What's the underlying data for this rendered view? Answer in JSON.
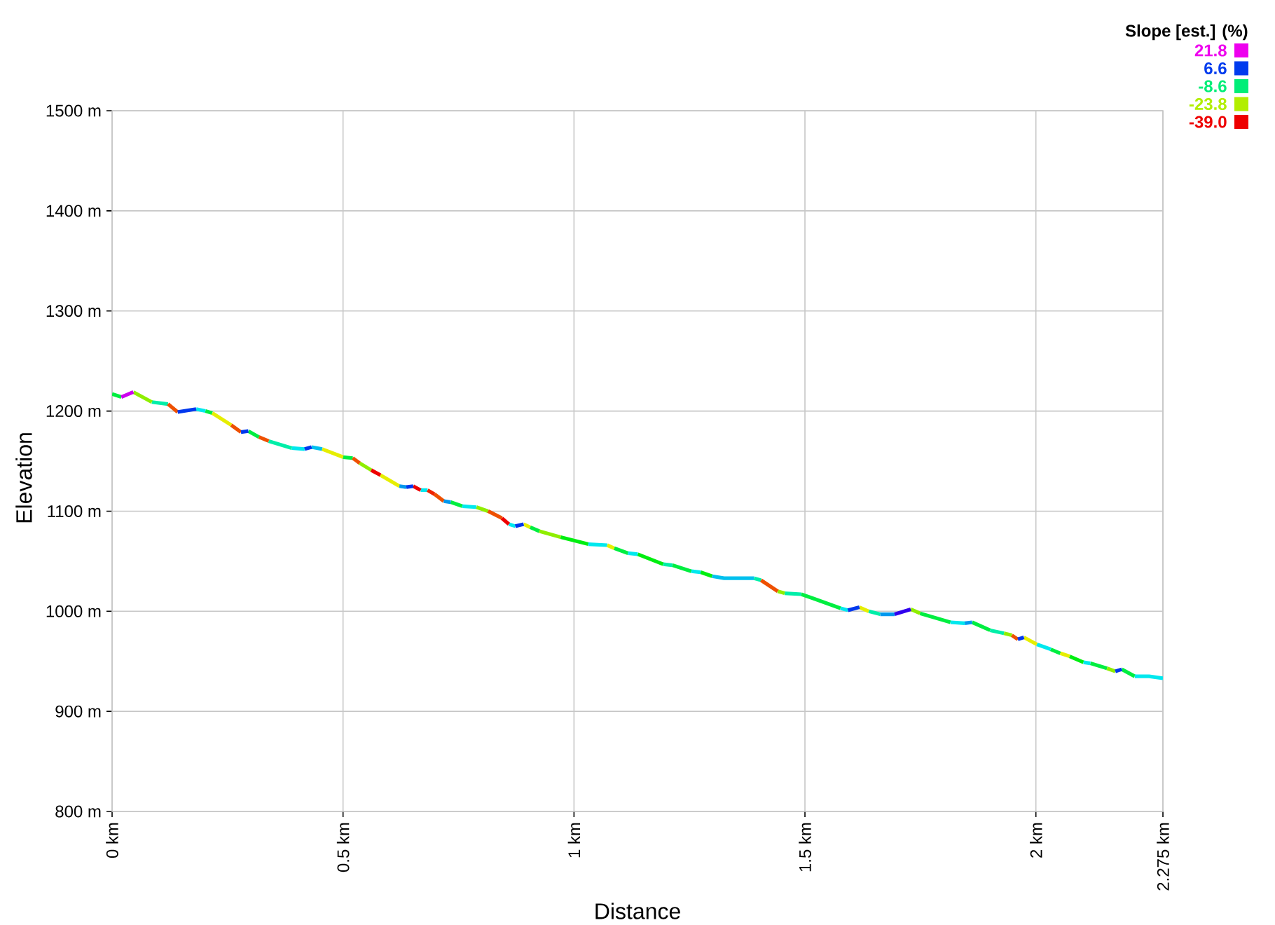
{
  "chart_data": {
    "type": "line",
    "xlabel": "Distance",
    "ylabel": "Elevation",
    "clabel": "Slope [est.] (%)",
    "clim": [
      -39.0,
      21.8
    ],
    "cticks": [
      21.8,
      6.6,
      -8.6,
      -23.8,
      {
        "value": -39.0,
        "label": "-39.0"
      }
    ],
    "xlim": [
      0,
      2.275
    ],
    "ylim": [
      800,
      1500
    ],
    "xticks": [
      {
        "value": 0,
        "label": "0 km"
      },
      {
        "value": 0.5,
        "label": "0.5 km"
      },
      {
        "value": 1,
        "label": "1 km"
      },
      {
        "value": 1.5,
        "label": "1.5 km"
      },
      {
        "value": 2,
        "label": "2 km"
      },
      {
        "value": 2.275,
        "label": "2.275 km"
      }
    ],
    "yticks": [
      {
        "value": 800,
        "label": "800 m"
      },
      {
        "value": 900,
        "label": "900 m"
      },
      {
        "value": 1000,
        "label": "1000 m"
      },
      {
        "value": 1100,
        "label": "1100 m"
      },
      {
        "value": 1200,
        "label": "1200 m"
      },
      {
        "value": 1300,
        "label": "1300 m"
      },
      {
        "value": 1400,
        "label": "1400 m"
      },
      {
        "value": 1500,
        "label": "1500 m"
      }
    ],
    "grid": true,
    "x": [
      0,
      0.02,
      0.046,
      0.086,
      0.121,
      0.142,
      0.182,
      0.202,
      0.217,
      0.258,
      0.279,
      0.295,
      0.318,
      0.339,
      0.389,
      0.417,
      0.432,
      0.455,
      0.5,
      0.521,
      0.536,
      0.561,
      0.581,
      0.622,
      0.637,
      0.652,
      0.668,
      0.683,
      0.698,
      0.718,
      0.733,
      0.758,
      0.789,
      0.814,
      0.844,
      0.859,
      0.873,
      0.891,
      0.905,
      0.925,
      0.971,
      1.031,
      1.072,
      1.087,
      1.117,
      1.138,
      1.193,
      1.213,
      1.254,
      1.274,
      1.299,
      1.325,
      1.39,
      1.405,
      1.441,
      1.456,
      1.492,
      1.517,
      1.577,
      1.593,
      1.618,
      1.638,
      1.663,
      1.694,
      1.729,
      1.749,
      1.815,
      1.846,
      1.862,
      1.901,
      1.931,
      1.948,
      1.961,
      1.974,
      2.002,
      2.032,
      2.053,
      2.073,
      2.103,
      2.118,
      2.154,
      2.172,
      2.186,
      2.214,
      2.245,
      2.275
    ],
    "series": [
      {
        "color": "#00ee40",
        "values": [
          1217,
          1214,
          null,
          null,
          null,
          null,
          null,
          1200,
          1198,
          null,
          null,
          1180,
          1174,
          null,
          null,
          null,
          null,
          null,
          1154,
          1153,
          null,
          null,
          null,
          null,
          null,
          null,
          null,
          null,
          null,
          null,
          1109,
          1105,
          null,
          null,
          null,
          null,
          null,
          null,
          1084,
          1080,
          null,
          null,
          null,
          1063,
          1058,
          null,
          null,
          1046,
          1040,
          null,
          null,
          null,
          null,
          null,
          null,
          null,
          1017,
          1013,
          1003,
          null,
          null,
          null,
          null,
          null,
          null,
          998,
          989,
          null,
          989,
          981,
          null,
          null,
          null,
          null,
          null,
          962,
          958,
          null,
          null,
          948,
          943,
          null,
          942,
          935,
          null,
          null
        ]
      },
      {
        "color": "#00ee10",
        "values": [
          null,
          null,
          null,
          null,
          null,
          null,
          null,
          null,
          null,
          null,
          null,
          null,
          null,
          null,
          null,
          null,
          null,
          null,
          null,
          null,
          null,
          null,
          null,
          null,
          null,
          null,
          null,
          null,
          null,
          null,
          null,
          null,
          null,
          null,
          null,
          null,
          null,
          null,
          null,
          null,
          1074,
          1067,
          null,
          null,
          null,
          1057,
          1047,
          null,
          null,
          1039,
          1035,
          null,
          null,
          null,
          null,
          null,
          null,
          null,
          null,
          null,
          null,
          null,
          null,
          null,
          null,
          null,
          null,
          null,
          null,
          null,
          null,
          null,
          null,
          null,
          null,
          null,
          null,
          955,
          949,
          null,
          null,
          null,
          null,
          null,
          null,
          null
        ]
      },
      {
        "color": "#00e8ee",
        "values": [
          null,
          null,
          null,
          null,
          null,
          null,
          1202,
          1200,
          null,
          null,
          null,
          null,
          null,
          null,
          1163,
          1162,
          null,
          null,
          null,
          null,
          null,
          null,
          null,
          null,
          null,
          null,
          1121,
          1121,
          null,
          null,
          null,
          1105,
          1104,
          null,
          null,
          1087,
          1085,
          null,
          null,
          null,
          null,
          1067,
          1066,
          null,
          1058,
          1057,
          null,
          null,
          1040,
          1039,
          null,
          null,
          null,
          null,
          null,
          null,
          null,
          null,
          1003,
          1001,
          null,
          null,
          null,
          null,
          null,
          null,
          989,
          988,
          null,
          null,
          null,
          null,
          null,
          null,
          967,
          962,
          null,
          null,
          949,
          948,
          null,
          null,
          null,
          935,
          935,
          933
        ]
      },
      {
        "color": "#00c0ee",
        "values": [
          null,
          null,
          null,
          null,
          null,
          null,
          null,
          null,
          null,
          null,
          null,
          null,
          null,
          null,
          null,
          null,
          1164,
          1162,
          null,
          null,
          null,
          null,
          null,
          null,
          null,
          null,
          null,
          null,
          null,
          null,
          null,
          null,
          null,
          null,
          null,
          null,
          null,
          null,
          null,
          null,
          null,
          null,
          null,
          null,
          null,
          null,
          null,
          null,
          null,
          null,
          1035,
          1033,
          1033,
          null,
          null,
          null,
          null,
          null,
          null,
          null,
          null,
          null,
          null,
          null,
          null,
          null,
          null,
          null,
          null,
          null,
          null,
          null,
          null,
          null,
          null,
          null,
          null,
          null,
          null,
          null,
          null,
          null,
          null,
          null,
          null,
          null
        ]
      },
      {
        "color": "#00eea8",
        "values": [
          null,
          null,
          null,
          1209,
          1207,
          null,
          null,
          null,
          null,
          null,
          null,
          null,
          null,
          1170,
          1163,
          null,
          null,
          null,
          null,
          null,
          null,
          null,
          null,
          null,
          null,
          null,
          null,
          null,
          null,
          null,
          null,
          null,
          null,
          null,
          null,
          null,
          null,
          null,
          null,
          null,
          null,
          null,
          null,
          null,
          null,
          null,
          1047,
          1046,
          null,
          null,
          null,
          null,
          1033,
          1031,
          null,
          1018,
          1017,
          null,
          null,
          null,
          null,
          1000,
          997,
          null,
          null,
          null,
          null,
          null,
          null,
          981,
          978,
          null,
          null,
          null,
          null,
          null,
          null,
          null,
          null,
          null,
          null,
          null,
          null,
          null,
          null,
          null
        ]
      },
      {
        "color": "#8fee00",
        "values": [
          null,
          null,
          1219,
          1209,
          null,
          null,
          null,
          null,
          null,
          null,
          null,
          null,
          null,
          null,
          null,
          null,
          null,
          null,
          null,
          null,
          1148,
          1141,
          null,
          null,
          null,
          null,
          null,
          null,
          null,
          null,
          null,
          null,
          1104,
          1100,
          null,
          null,
          null,
          null,
          null,
          1080,
          1074,
          null,
          null,
          null,
          null,
          null,
          null,
          null,
          null,
          null,
          null,
          null,
          null,
          null,
          1020,
          1018,
          null,
          null,
          null,
          null,
          null,
          null,
          null,
          null,
          1002,
          998,
          null,
          null,
          null,
          null,
          978,
          976,
          null,
          null,
          null,
          null,
          null,
          null,
          null,
          null,
          943,
          940,
          null,
          null,
          null,
          null
        ]
      },
      {
        "color": "#e6ee00",
        "values": [
          null,
          null,
          null,
          null,
          null,
          null,
          null,
          null,
          1198,
          1186,
          null,
          null,
          null,
          null,
          null,
          null,
          null,
          1162,
          1154,
          null,
          null,
          null,
          1136,
          1125,
          null,
          null,
          null,
          null,
          null,
          null,
          null,
          null,
          null,
          null,
          null,
          null,
          null,
          1087,
          1084,
          null,
          null,
          null,
          1066,
          1063,
          null,
          null,
          null,
          null,
          null,
          null,
          null,
          null,
          null,
          null,
          null,
          null,
          null,
          null,
          null,
          null,
          1004,
          1000,
          null,
          null,
          null,
          null,
          null,
          null,
          null,
          null,
          null,
          null,
          null,
          974,
          967,
          null,
          958,
          955,
          null,
          null,
          null,
          null,
          null,
          null,
          null,
          null
        ]
      },
      {
        "color": "#ee5000",
        "values": [
          null,
          null,
          null,
          null,
          1207,
          1199,
          null,
          null,
          null,
          1186,
          1179,
          null,
          1174,
          1170,
          null,
          null,
          null,
          null,
          null,
          1153,
          1148,
          null,
          null,
          null,
          null,
          null,
          null,
          null,
          1117,
          1110,
          null,
          null,
          null,
          1100,
          1093,
          null,
          null,
          null,
          null,
          null,
          null,
          null,
          null,
          null,
          null,
          null,
          null,
          null,
          null,
          null,
          null,
          null,
          null,
          1031,
          1020,
          null,
          null,
          null,
          null,
          null,
          null,
          null,
          null,
          null,
          null,
          null,
          null,
          null,
          null,
          null,
          null,
          976,
          972,
          null,
          null,
          null,
          null,
          null,
          null,
          null,
          null,
          null,
          null,
          null,
          null,
          null
        ]
      },
      {
        "color": "#ee0000",
        "values": [
          null,
          null,
          null,
          null,
          null,
          null,
          null,
          null,
          null,
          null,
          null,
          null,
          null,
          null,
          null,
          null,
          null,
          null,
          null,
          null,
          null,
          1141,
          1136,
          null,
          null,
          1125,
          1121,
          null,
          null,
          null,
          null,
          null,
          null,
          null,
          1093,
          1087,
          null,
          null,
          null,
          null,
          null,
          null,
          null,
          null,
          null,
          null,
          null,
          null,
          null,
          null,
          null,
          null,
          null,
          null,
          null,
          null,
          null,
          null,
          null,
          null,
          null,
          null,
          null,
          null,
          null,
          null,
          null,
          null,
          null,
          null,
          null,
          null,
          null,
          null,
          null,
          null,
          null,
          null,
          null,
          null,
          null,
          null,
          null,
          null,
          null,
          null
        ]
      },
      {
        "color": "#ee2400",
        "values": [
          null,
          null,
          null,
          null,
          null,
          null,
          null,
          null,
          null,
          null,
          null,
          null,
          null,
          null,
          null,
          null,
          null,
          null,
          null,
          null,
          null,
          null,
          null,
          null,
          null,
          null,
          null,
          1121,
          1117,
          null,
          null,
          null,
          null,
          null,
          null,
          null,
          null,
          null,
          null,
          null,
          null,
          null,
          null,
          null,
          null,
          null,
          null,
          null,
          null,
          null,
          null,
          null,
          null,
          null,
          null,
          null,
          null,
          null,
          null,
          null,
          null,
          null,
          null,
          null,
          null,
          null,
          null,
          null,
          null,
          null,
          null,
          null,
          null,
          null,
          null,
          null,
          null,
          null,
          null,
          null,
          null,
          null,
          null,
          null,
          null,
          null
        ]
      },
      {
        "color": "#0098ee",
        "values": [
          null,
          null,
          null,
          null,
          null,
          null,
          null,
          null,
          null,
          null,
          null,
          null,
          null,
          null,
          null,
          null,
          null,
          null,
          null,
          null,
          null,
          null,
          null,
          1125,
          1124,
          null,
          null,
          null,
          null,
          1110,
          1109,
          null,
          null,
          null,
          null,
          null,
          null,
          null,
          null,
          null,
          null,
          null,
          null,
          null,
          null,
          null,
          null,
          null,
          null,
          null,
          null,
          null,
          null,
          null,
          null,
          null,
          null,
          null,
          null,
          null,
          null,
          null,
          997,
          997,
          null,
          null,
          null,
          988,
          989,
          null,
          null,
          null,
          null,
          null,
          null,
          null,
          null,
          null,
          null,
          null,
          null,
          null,
          null,
          null,
          null,
          null
        ]
      },
      {
        "color": "#0038ee",
        "values": [
          null,
          null,
          null,
          null,
          null,
          1199,
          1202,
          null,
          null,
          null,
          1179,
          1180,
          null,
          null,
          null,
          1162,
          1164,
          null,
          null,
          null,
          null,
          null,
          null,
          null,
          1124,
          1125,
          null,
          null,
          null,
          null,
          null,
          null,
          null,
          null,
          null,
          null,
          1085,
          1087,
          null,
          null,
          null,
          null,
          null,
          null,
          null,
          null,
          null,
          null,
          null,
          null,
          null,
          null,
          null,
          null,
          null,
          null,
          null,
          null,
          null,
          1001,
          1004,
          null,
          null,
          null,
          null,
          null,
          null,
          null,
          null,
          null,
          null,
          null,
          972,
          974,
          null,
          null,
          null,
          null,
          null,
          null,
          null,
          940,
          942,
          null,
          null,
          null
        ]
      },
      {
        "color": "#3000ee",
        "values": [
          null,
          null,
          null,
          null,
          null,
          null,
          null,
          null,
          null,
          null,
          null,
          null,
          null,
          null,
          null,
          null,
          null,
          null,
          null,
          null,
          null,
          null,
          null,
          null,
          null,
          null,
          null,
          null,
          null,
          null,
          null,
          null,
          null,
          null,
          null,
          null,
          null,
          null,
          null,
          null,
          null,
          null,
          null,
          null,
          null,
          null,
          null,
          null,
          null,
          null,
          null,
          null,
          null,
          null,
          null,
          null,
          null,
          null,
          null,
          null,
          null,
          null,
          null,
          997,
          1002,
          null,
          null,
          null,
          null,
          null,
          null,
          null,
          null,
          null,
          null,
          null,
          null,
          null,
          null,
          null,
          null,
          null,
          null,
          null,
          null,
          null
        ]
      },
      {
        "color": "#cc00ee",
        "values": [
          null,
          1214,
          1219,
          null,
          null,
          null,
          null,
          null,
          null,
          null,
          null,
          null,
          null,
          null,
          null,
          null,
          null,
          null,
          null,
          null,
          null,
          null,
          null,
          null,
          null,
          null,
          null,
          null,
          null,
          null,
          null,
          null,
          null,
          null,
          null,
          null,
          null,
          null,
          null,
          null,
          null,
          null,
          null,
          null,
          null,
          null,
          null,
          null,
          null,
          null,
          null,
          null,
          null,
          null,
          null,
          null,
          null,
          null,
          null,
          null,
          null,
          null,
          null,
          null,
          null,
          null,
          null,
          null,
          null,
          null,
          null,
          null,
          null,
          null,
          null,
          null,
          null,
          null,
          null,
          null,
          null,
          null,
          null,
          null,
          null,
          null
        ]
      }
    ]
  }
}
